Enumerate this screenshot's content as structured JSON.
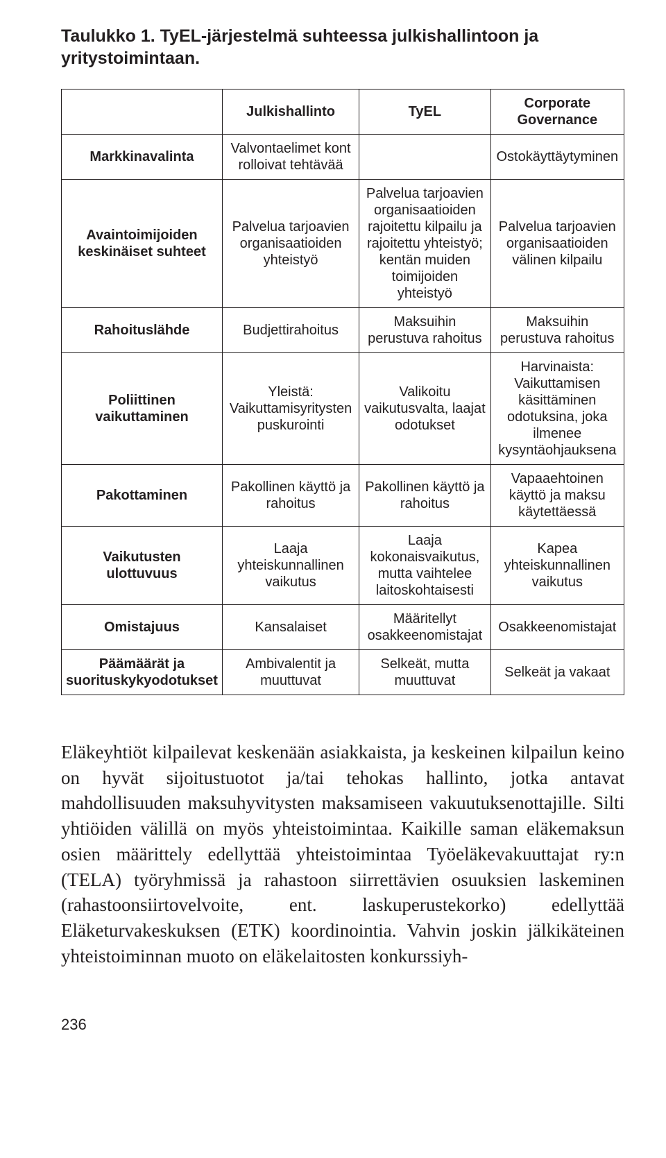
{
  "caption": "Taulukko 1. TyEL-järjestelmä suhteessa julkishallintoon ja yritystoimintaan.",
  "table": {
    "header": {
      "blank": "",
      "col1": "Julkishallinto",
      "col2": "TyEL",
      "col3": "Corporate Governance"
    },
    "rows": [
      {
        "label": "Markkinavalinta",
        "c1": "Valvontaelimet kont rolloivat tehtävää",
        "c2": "",
        "c3": "Ostokäyttäytyminen"
      },
      {
        "label": "Avaintoimijoiden keskinäiset suhteet",
        "c1": "Palvelua tarjoavien organisaatioiden yhteistyö",
        "c2": "Palvelua tarjoavien organisaatioiden rajoitettu kilpailu ja rajoitettu yhteistyö; kentän muiden toimijoiden yhteistyö",
        "c3": "Palvelua tarjoavien organisaatioiden välinen kilpailu"
      },
      {
        "label": "Rahoituslähde",
        "c1": "Budjettirahoitus",
        "c2": "Maksuihin perustuva rahoitus",
        "c3": "Maksuihin perustuva rahoitus"
      },
      {
        "label": "Poliittinen vaikuttaminen",
        "c1": "Yleistä: Vaikuttamisyritysten puskurointi",
        "c2": "Valikoitu vaikutusvalta, laajat odotukset",
        "c3": "Harvinaista: Vaikuttamisen käsittäminen odotuksina, joka ilmenee kysyntäohjauksena"
      },
      {
        "label": "Pakottaminen",
        "c1": "Pakollinen käyttö ja rahoitus",
        "c2": "Pakollinen käyttö ja rahoitus",
        "c3": "Vapaaehtoinen käyttö ja maksu käytettäessä"
      },
      {
        "label": "Vaikutusten ulottuvuus",
        "c1": "Laaja yhteiskunnallinen vaikutus",
        "c2": "Laaja kokonaisvaikutus, mutta vaihtelee laitoskohtaisesti",
        "c3": "Kapea yhteiskunnallinen vaikutus"
      },
      {
        "label": "Omistajuus",
        "c1": "Kansalaiset",
        "c2": "Määritellyt osakkeenomistajat",
        "c3": "Osakkeenomistajat"
      },
      {
        "label": "Päämäärät ja suorituskykyodotukset",
        "c1": "Ambivalentit ja muuttuvat",
        "c2": "Selkeät, mutta muuttuvat",
        "c3": "Selkeät ja vakaat"
      }
    ]
  },
  "body_paragraph": "Eläkeyhtiöt kilpailevat keskenään asiakkaista, ja keskeinen kilpailun keino on hyvät sijoitustuotot ja/tai tehokas hallinto, jotka antavat mahdollisuuden maksuhyvitysten maksamiseen vakuutuksenottajille. Silti yhtiöiden välillä on myös yhteistoimintaa. Kaikille saman eläkemaksun osien määrittely edellyttää yhteistoimintaa Työeläkevakuuttajat ry:n (TELA) työryhmissä ja rahastoon siirrettävien osuuksien laskeminen (rahastoonsiirtovelvoite, ent. laskuperustekorko) edellyttää Eläketurvakeskuksen (ETK) koordinointia. Vahvin joskin jälkikäteinen yhteistoiminnan muoto on eläkelaitosten konkurssiyh-",
  "page_number": "236",
  "styling": {
    "page_background": "#ffffff",
    "text_color": "#231f20",
    "border_color": "#231f20",
    "caption_font_family": "Arial",
    "caption_font_weight": 700,
    "caption_font_size_pt": 12,
    "table_font_family": "Arial",
    "table_font_size_pt": 10,
    "body_font_family": "Georgia",
    "body_font_size_pt": 13,
    "column_widths_pct": [
      21,
      27,
      27,
      25
    ]
  }
}
